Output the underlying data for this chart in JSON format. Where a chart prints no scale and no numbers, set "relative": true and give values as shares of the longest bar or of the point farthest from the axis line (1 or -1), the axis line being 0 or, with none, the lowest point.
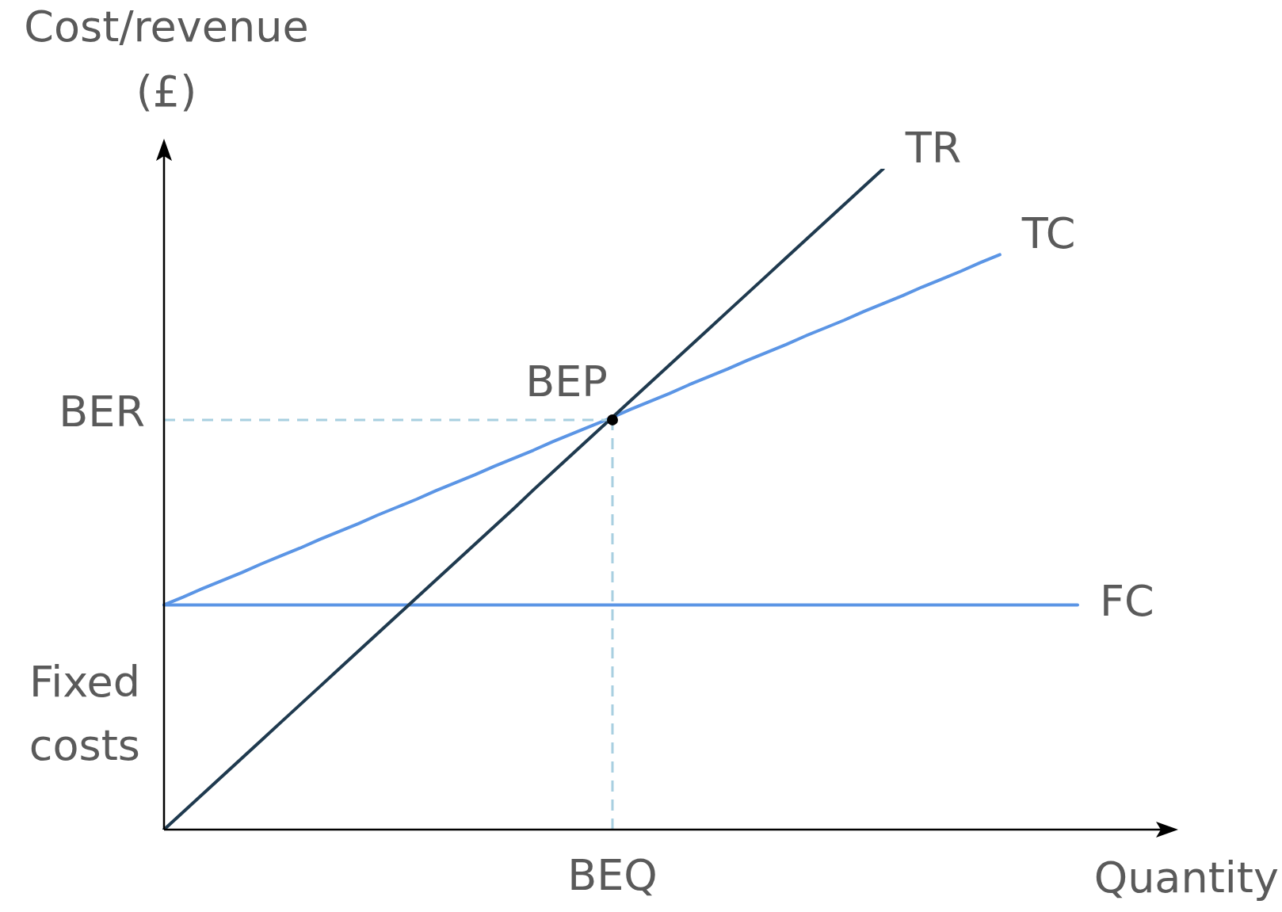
{
  "chart_data": {
    "type": "line",
    "relative": true,
    "xlabel": "Quantity",
    "ylabel": "Cost/revenue (£)",
    "legend": false,
    "marker": "none",
    "line_style": "solid",
    "categories": [
      null,
      null,
      null,
      null,
      null,
      null,
      null,
      null,
      null,
      null,
      null,
      null,
      null,
      null,
      null,
      null,
      null,
      null,
      null,
      null,
      null,
      null,
      null,
      null,
      null,
      null,
      null,
      null,
      null,
      null,
      null,
      null,
      null,
      null,
      null,
      null,
      null,
      null,
      null,
      null,
      null,
      null,
      null,
      null,
      null,
      null,
      null,
      null
    ],
    "series": [
      {
        "name": "TR",
        "color": "#1f3a4f",
        "values": [
          0,
          0.027,
          0.054,
          0.081,
          0.108,
          0.135,
          0.162,
          0.189,
          0.216,
          0.243,
          0.27,
          0.297,
          0.324,
          0.351,
          0.378,
          0.405,
          0.432,
          0.459,
          0.486,
          0.514,
          0.541,
          0.568,
          0.595,
          0.622,
          0.649,
          0.676,
          0.703,
          0.73,
          0.757,
          0.784,
          0.811,
          0.838,
          0.865,
          0.892,
          0.919,
          0.946,
          0.973,
          1,
          null,
          null,
          null,
          null,
          null,
          null,
          null,
          null,
          null,
          null
        ]
      },
      {
        "name": "TC",
        "color": "#5b95e5",
        "values": [
          0.34,
          0.352,
          0.365,
          0.377,
          0.389,
          0.402,
          0.414,
          0.426,
          0.439,
          0.451,
          0.463,
          0.476,
          0.488,
          0.5,
          0.513,
          0.525,
          0.537,
          0.55,
          0.562,
          0.574,
          0.587,
          0.599,
          0.611,
          0.623,
          0.636,
          0.648,
          0.66,
          0.673,
          0.685,
          0.697,
          0.71,
          0.722,
          0.734,
          0.747,
          0.759,
          0.771,
          0.784,
          0.796,
          0.808,
          0.821,
          0.833,
          0.845,
          0.858,
          0.87,
          null,
          null,
          null,
          null
        ]
      },
      {
        "name": "FC",
        "color": "#5b95e5",
        "values": [
          0.34,
          0.34,
          0.34,
          0.34,
          0.34,
          0.34,
          0.34,
          0.34,
          0.34,
          0.34,
          0.34,
          0.34,
          0.34,
          0.34,
          0.34,
          0.34,
          0.34,
          0.34,
          0.34,
          0.34,
          0.34,
          0.34,
          0.34,
          0.34,
          0.34,
          0.34,
          0.34,
          0.34,
          0.34,
          0.34,
          0.34,
          0.34,
          0.34,
          0.34,
          0.34,
          0.34,
          0.34,
          0.34,
          0.34,
          0.34,
          0.34,
          0.34,
          0.34,
          0.34,
          0.34,
          0.34,
          0.34,
          0.34
        ]
      }
    ],
    "ref_lines": [
      {
        "axis": "y",
        "value": 0.62,
        "label": "BER",
        "color": "#a8cfe0",
        "line_style": "dashed"
      },
      {
        "axis": "x",
        "label": "BEQ",
        "color": "#a8cfe0",
        "line_style": "dashed"
      }
    ],
    "annotations": [
      {
        "text": "BEP",
        "y": 0.62
      },
      "Fixed costs"
    ]
  }
}
